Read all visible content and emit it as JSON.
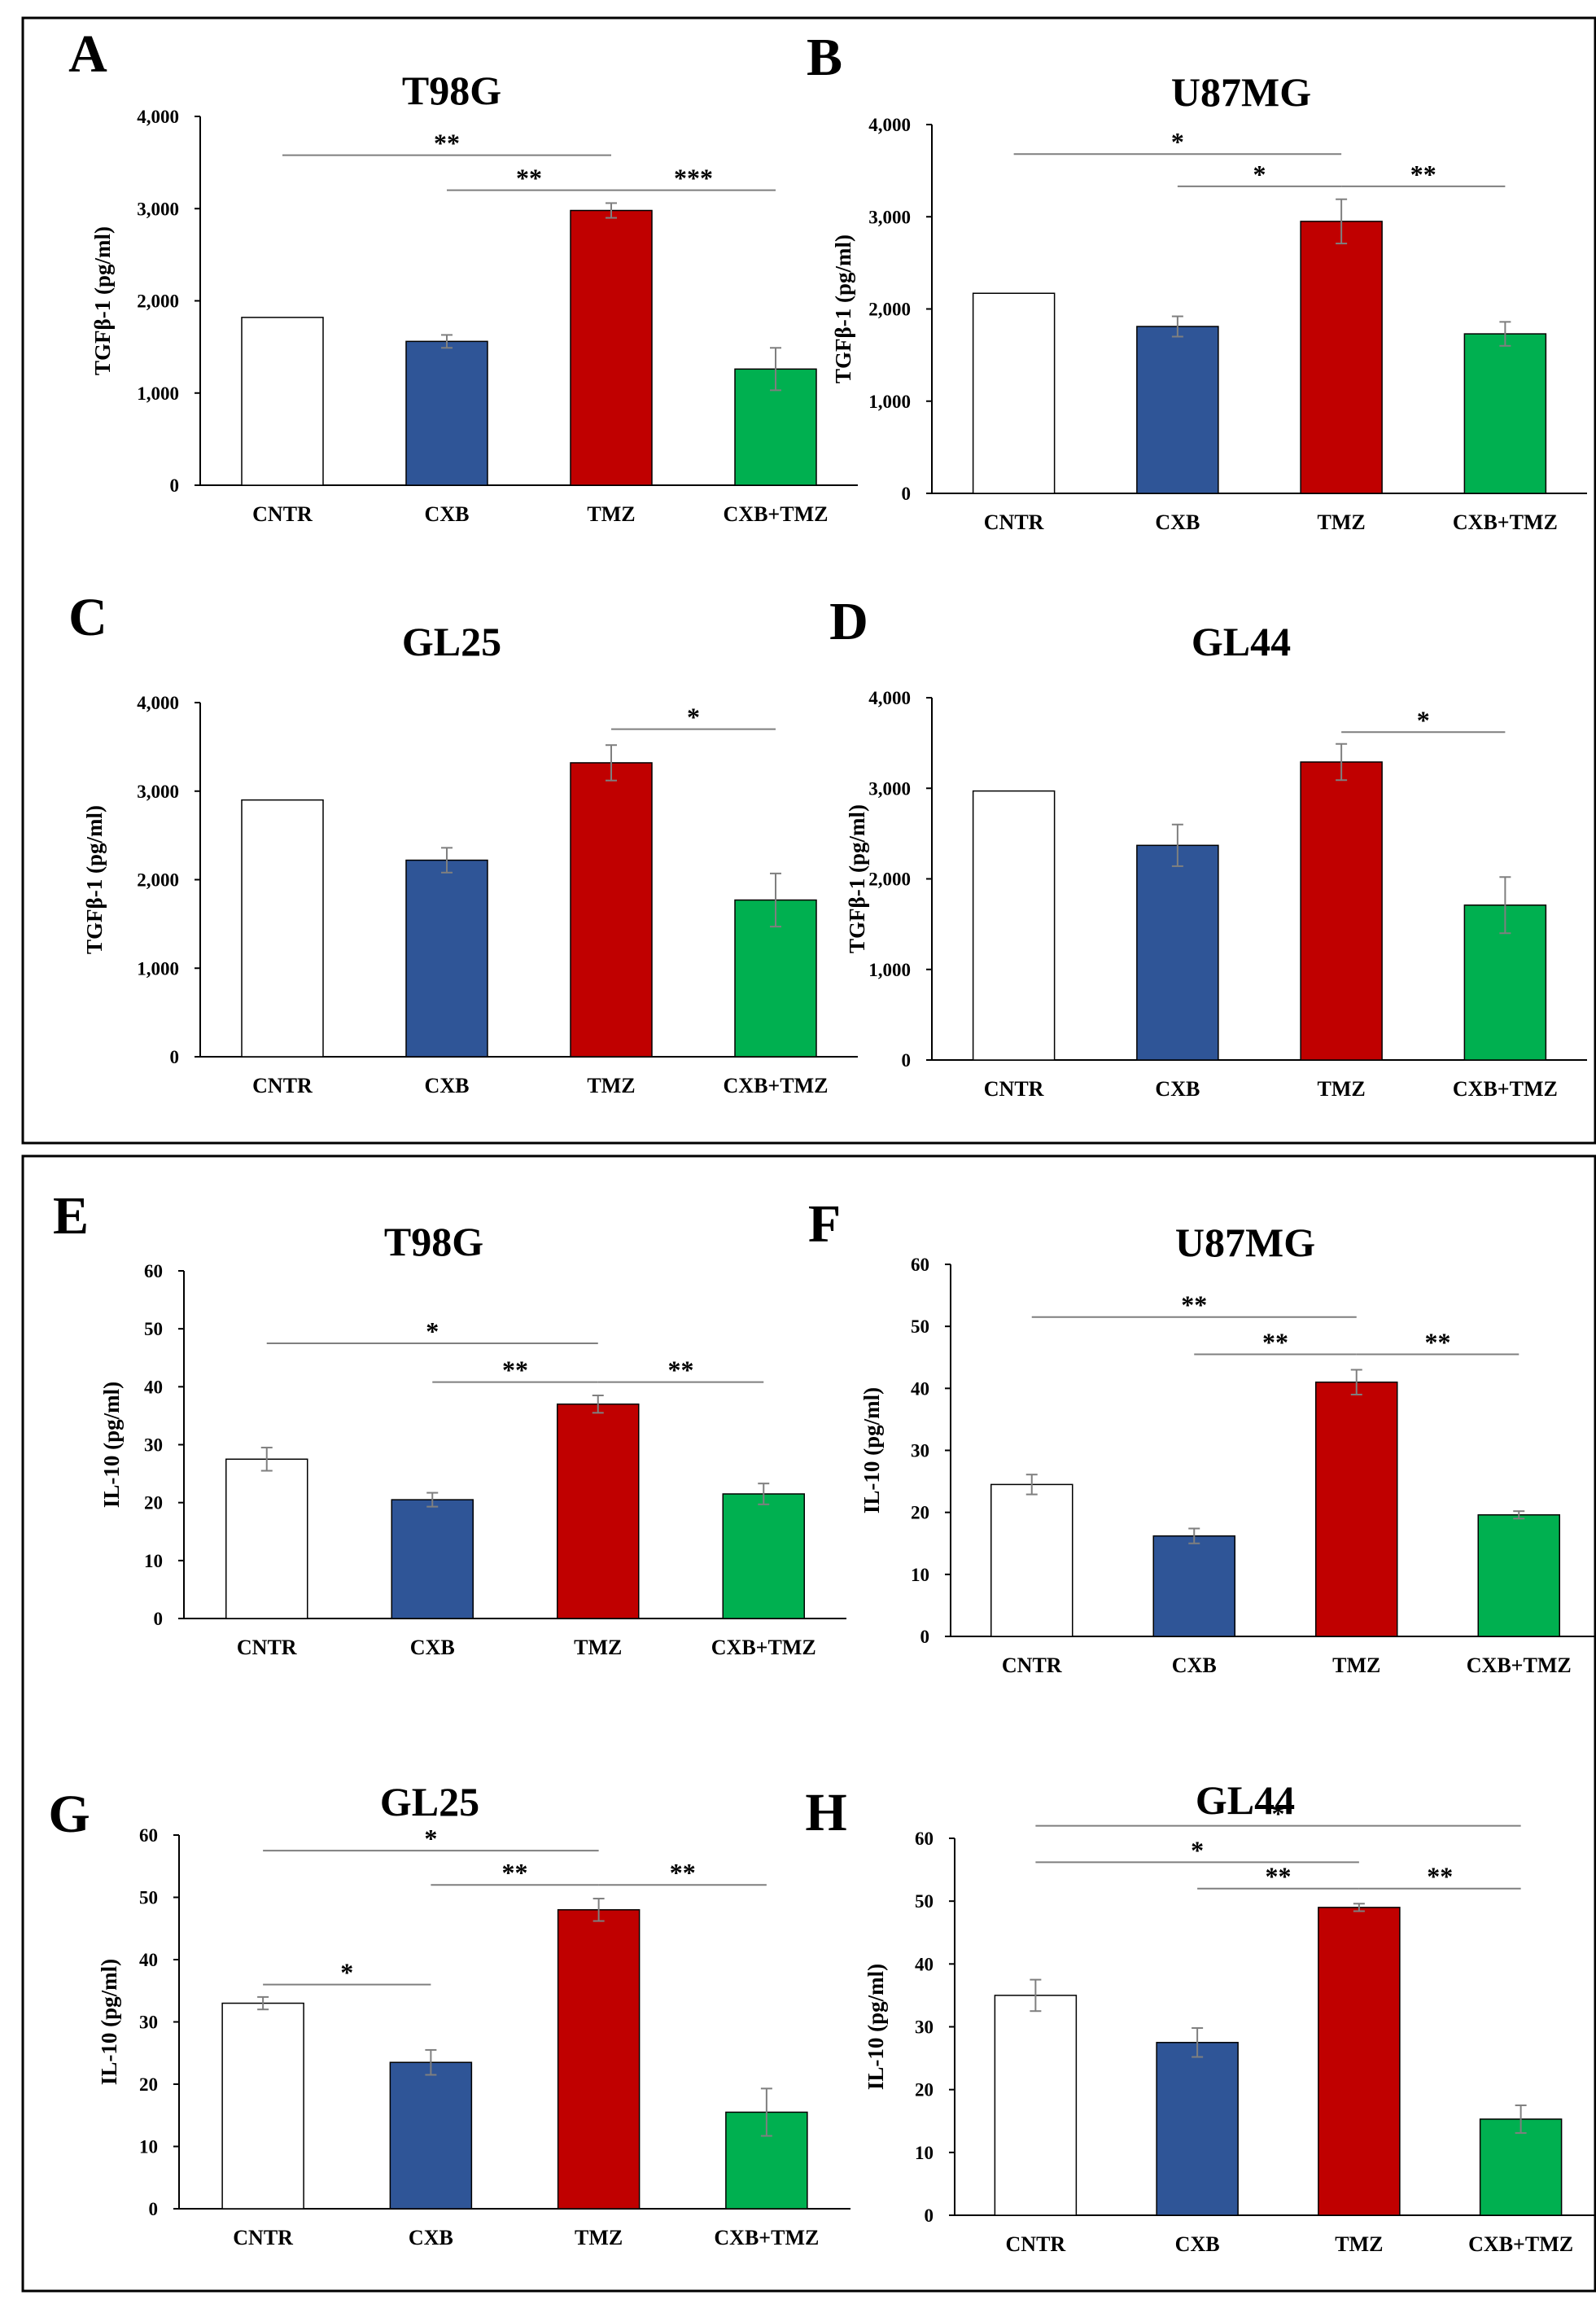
{
  "colors": {
    "CNTR": "#ffffff",
    "CXB": "#2f5597",
    "TMZ": "#c00000",
    "CXB+TMZ": "#00b050",
    "axis": "#000000",
    "error": "#7f7f7f",
    "bracket": "#7f7f7f",
    "frame": "#000000"
  },
  "chart_data": [
    {
      "type": "bar",
      "letter": "A",
      "title": "T98G",
      "ylabel": "TGFβ-1 (pg/ml)",
      "categories": [
        "CNTR",
        "CXB",
        "TMZ",
        "CXB+TMZ"
      ],
      "values": [
        1820,
        1560,
        2980,
        1260
      ],
      "errors": [
        0,
        70,
        80,
        230
      ],
      "ylim": [
        0,
        4000
      ],
      "yticks": [
        "0",
        "1,000",
        "2,000",
        "3,000",
        "4,000"
      ],
      "significance": [
        {
          "from": 0,
          "to": 2,
          "label": "**",
          "y": 3580
        },
        {
          "from": 1,
          "to": 2,
          "label": "**",
          "y": 3200
        },
        {
          "from": 2,
          "to": 3,
          "label": "***",
          "y": 3200
        }
      ]
    },
    {
      "type": "bar",
      "letter": "B",
      "title": "U87MG",
      "ylabel": "TGFβ-1 (pg/ml)",
      "categories": [
        "CNTR",
        "CXB",
        "TMZ",
        "CXB+TMZ"
      ],
      "values": [
        2170,
        1810,
        2950,
        1730
      ],
      "errors": [
        0,
        110,
        240,
        130
      ],
      "ylim": [
        0,
        4000
      ],
      "yticks": [
        "0",
        "1,000",
        "2,000",
        "3,000",
        "4,000"
      ],
      "significance": [
        {
          "from": 0,
          "to": 2,
          "label": "*",
          "y": 3680
        },
        {
          "from": 1,
          "to": 2,
          "label": "*",
          "y": 3330
        },
        {
          "from": 2,
          "to": 3,
          "label": "**",
          "y": 3330
        }
      ]
    },
    {
      "type": "bar",
      "letter": "C",
      "title": "GL25",
      "ylabel": "TGFβ-1 (pg/ml)",
      "categories": [
        "CNTR",
        "CXB",
        "TMZ",
        "CXB+TMZ"
      ],
      "values": [
        2900,
        2220,
        3320,
        1770
      ],
      "errors": [
        0,
        140,
        200,
        300
      ],
      "ylim": [
        0,
        4000
      ],
      "yticks": [
        "0",
        "1,000",
        "2,000",
        "3,000",
        "4,000"
      ],
      "significance": [
        {
          "from": 2,
          "to": 3,
          "label": "*",
          "y": 3700
        }
      ]
    },
    {
      "type": "bar",
      "letter": "D",
      "title": "GL44",
      "ylabel": "TGFβ-1 (pg/ml)",
      "categories": [
        "CNTR",
        "CXB",
        "TMZ",
        "CXB+TMZ"
      ],
      "values": [
        2970,
        2370,
        3290,
        1710
      ],
      "errors": [
        0,
        230,
        200,
        310
      ],
      "ylim": [
        0,
        4000
      ],
      "yticks": [
        "0",
        "1,000",
        "2,000",
        "3,000",
        "4,000"
      ],
      "significance": [
        {
          "from": 2,
          "to": 3,
          "label": "*",
          "y": 3620
        }
      ]
    },
    {
      "type": "bar",
      "letter": "E",
      "title": "T98G",
      "ylabel": "IL-10 (pg/ml)",
      "categories": [
        "CNTR",
        "CXB",
        "TMZ",
        "CXB+TMZ"
      ],
      "values": [
        27.5,
        20.5,
        37.0,
        21.5
      ],
      "errors": [
        2.0,
        1.2,
        1.5,
        1.8
      ],
      "ylim": [
        0,
        60
      ],
      "yticks": [
        "0",
        "10",
        "20",
        "30",
        "40",
        "50",
        "60"
      ],
      "significance": [
        {
          "from": 0,
          "to": 2,
          "label": "*",
          "y": 47.5
        },
        {
          "from": 1,
          "to": 2,
          "label": "**",
          "y": 40.8
        },
        {
          "from": 2,
          "to": 3,
          "label": "**",
          "y": 40.8
        }
      ]
    },
    {
      "type": "bar",
      "letter": "F",
      "title": "U87MG",
      "ylabel": "IL-10 (pg/ml)",
      "categories": [
        "CNTR",
        "CXB",
        "TMZ",
        "CXB+TMZ"
      ],
      "values": [
        24.5,
        16.2,
        41.0,
        19.6
      ],
      "errors": [
        1.6,
        1.2,
        2.0,
        0.6
      ],
      "ylim": [
        0,
        60
      ],
      "yticks": [
        "0",
        "10",
        "20",
        "30",
        "40",
        "50",
        "60"
      ],
      "significance": [
        {
          "from": 0,
          "to": 2,
          "label": "**",
          "y": 51.5
        },
        {
          "from": 1,
          "to": 2,
          "label": "**",
          "y": 45.5
        },
        {
          "from": 2,
          "to": 3,
          "label": "**",
          "y": 45.5
        }
      ]
    },
    {
      "type": "bar",
      "letter": "G",
      "title": "GL25",
      "ylabel": "IL-10 (pg/ml)",
      "categories": [
        "CNTR",
        "CXB",
        "TMZ",
        "CXB+TMZ"
      ],
      "values": [
        33.0,
        23.5,
        48.0,
        15.5
      ],
      "errors": [
        1.0,
        2.0,
        1.8,
        3.8
      ],
      "ylim": [
        0,
        60
      ],
      "yticks": [
        "0",
        "10",
        "20",
        "30",
        "40",
        "50",
        "60"
      ],
      "significance": [
        {
          "from": 0,
          "to": 2,
          "label": "*",
          "y": 57.5
        },
        {
          "from": 1,
          "to": 2,
          "label": "**",
          "y": 52.0
        },
        {
          "from": 2,
          "to": 3,
          "label": "**",
          "y": 52.0
        },
        {
          "from": 0,
          "to": 1,
          "label": "*",
          "y": 36.0
        }
      ]
    },
    {
      "type": "bar",
      "letter": "H",
      "title": "GL44",
      "ylabel": "IL-10 (pg/ml)",
      "categories": [
        "CNTR",
        "CXB",
        "TMZ",
        "CXB+TMZ"
      ],
      "values": [
        35.0,
        27.5,
        49.0,
        15.3
      ],
      "errors": [
        2.5,
        2.3,
        0.6,
        2.2
      ],
      "ylim": [
        0,
        60
      ],
      "yticks": [
        "0",
        "10",
        "20",
        "30",
        "40",
        "50",
        "60"
      ],
      "significance": [
        {
          "from": 0,
          "to": 3,
          "label": "*",
          "y": 62.0
        },
        {
          "from": 0,
          "to": 2,
          "label": "*",
          "y": 56.2
        },
        {
          "from": 1,
          "to": 2,
          "label": "**",
          "y": 52.0
        },
        {
          "from": 2,
          "to": 3,
          "label": "**",
          "y": 52.0
        }
      ]
    }
  ]
}
